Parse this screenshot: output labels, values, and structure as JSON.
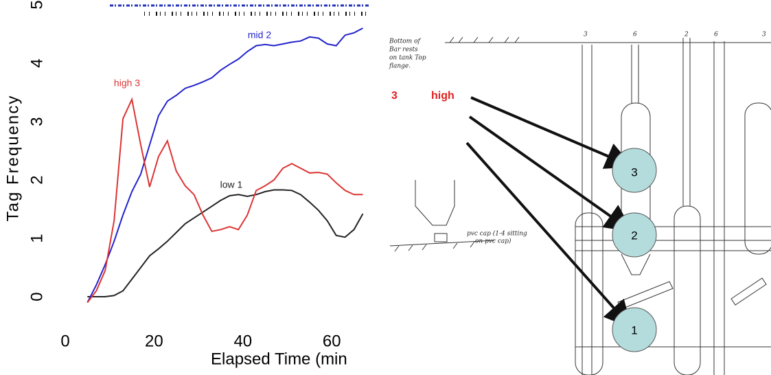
{
  "chart_data": {
    "type": "line",
    "ylabel": "Tag Frequency",
    "xlabel": "Elapsed Time (min",
    "x": [
      5,
      7,
      9,
      11,
      13,
      15,
      17,
      19,
      21,
      23,
      25,
      27,
      29,
      31,
      33,
      35,
      37,
      39,
      41,
      43,
      45,
      47,
      49,
      51,
      53,
      55,
      57,
      59,
      61,
      63,
      65,
      67
    ],
    "series": [
      {
        "name": "low 1",
        "color": "#222222",
        "values": [
          0,
          0,
          0,
          0.02,
          0.1,
          0.3,
          0.5,
          0.7,
          0.82,
          0.95,
          1.1,
          1.25,
          1.35,
          1.45,
          1.55,
          1.65,
          1.73,
          1.75,
          1.72,
          1.75,
          1.8,
          1.83,
          1.83,
          1.82,
          1.75,
          1.62,
          1.48,
          1.3,
          1.05,
          1.02,
          1.15,
          1.42
        ]
      },
      {
        "name": "mid 2",
        "color": "#2222cc",
        "values": [
          -0.1,
          0.2,
          0.55,
          0.95,
          1.4,
          1.8,
          2.1,
          2.6,
          3.1,
          3.35,
          3.45,
          3.57,
          3.62,
          3.68,
          3.75,
          3.88,
          3.98,
          4.07,
          4.2,
          4.3,
          4.32,
          4.3,
          4.33,
          4.36,
          4.38,
          4.45,
          4.43,
          4.33,
          4.3,
          4.48,
          4.52,
          4.6
        ]
      },
      {
        "name": "high 3",
        "color": "#dd3333",
        "values": [
          -0.1,
          0.1,
          0.45,
          1.3,
          3.05,
          3.38,
          2.6,
          1.88,
          2.4,
          2.67,
          2.15,
          1.9,
          1.75,
          1.4,
          1.12,
          1.15,
          1.2,
          1.15,
          1.4,
          1.82,
          1.9,
          2.0,
          2.2,
          2.28,
          2.2,
          2.12,
          2.13,
          2.1,
          1.95,
          1.82,
          1.75,
          1.75
        ]
      }
    ],
    "xlim": [
      0,
      68
    ],
    "xticks": [
      0,
      20,
      40,
      60
    ],
    "ylim": [
      -0.15,
      5.1
    ],
    "yticks": [
      0,
      1,
      2,
      3,
      4,
      5
    ]
  },
  "diagram": {
    "callout_number": "3",
    "callout_label": "high",
    "circles": [
      "3",
      "2",
      "1"
    ],
    "note": [
      "Bottom of",
      "Bar rests",
      "on tank Top",
      "flange."
    ],
    "cap_note": [
      "pvc cap (1-4 sitting",
      "on pvc cap)"
    ],
    "column_labels": [
      "3",
      "6",
      "2",
      "6",
      "3"
    ]
  }
}
